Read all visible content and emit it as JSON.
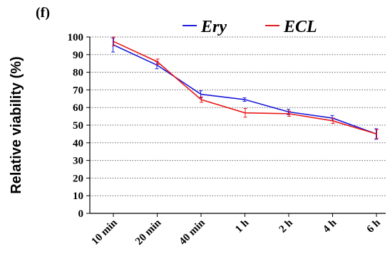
{
  "panel_label": "(f)",
  "chart_data": {
    "type": "line",
    "categories": [
      "10 min",
      "20 min",
      "40 min",
      "1 h",
      "2 h",
      "4 h",
      "6 h"
    ],
    "series": [
      {
        "name": "Ery",
        "color": "#1a1adc",
        "values": [
          95.5,
          84,
          67.5,
          64.5,
          57.5,
          54,
          45
        ],
        "errors": [
          4,
          2,
          2,
          1,
          1.5,
          1.5,
          3
        ]
      },
      {
        "name": "ECL",
        "color": "#e81818",
        "values": [
          97.5,
          86,
          64.5,
          57,
          56.5,
          52.5,
          45
        ],
        "errors": [
          2.5,
          1.5,
          1.5,
          2.5,
          1.5,
          1.5,
          2.5
        ]
      }
    ],
    "ylabel": "Relative viability (%)",
    "xlabel": "",
    "ylim": [
      0,
      100
    ],
    "yticks": [
      0,
      10,
      20,
      30,
      40,
      50,
      60,
      70,
      80,
      90,
      100
    ],
    "grid": "horizontal dotted",
    "legend_position": "top"
  }
}
